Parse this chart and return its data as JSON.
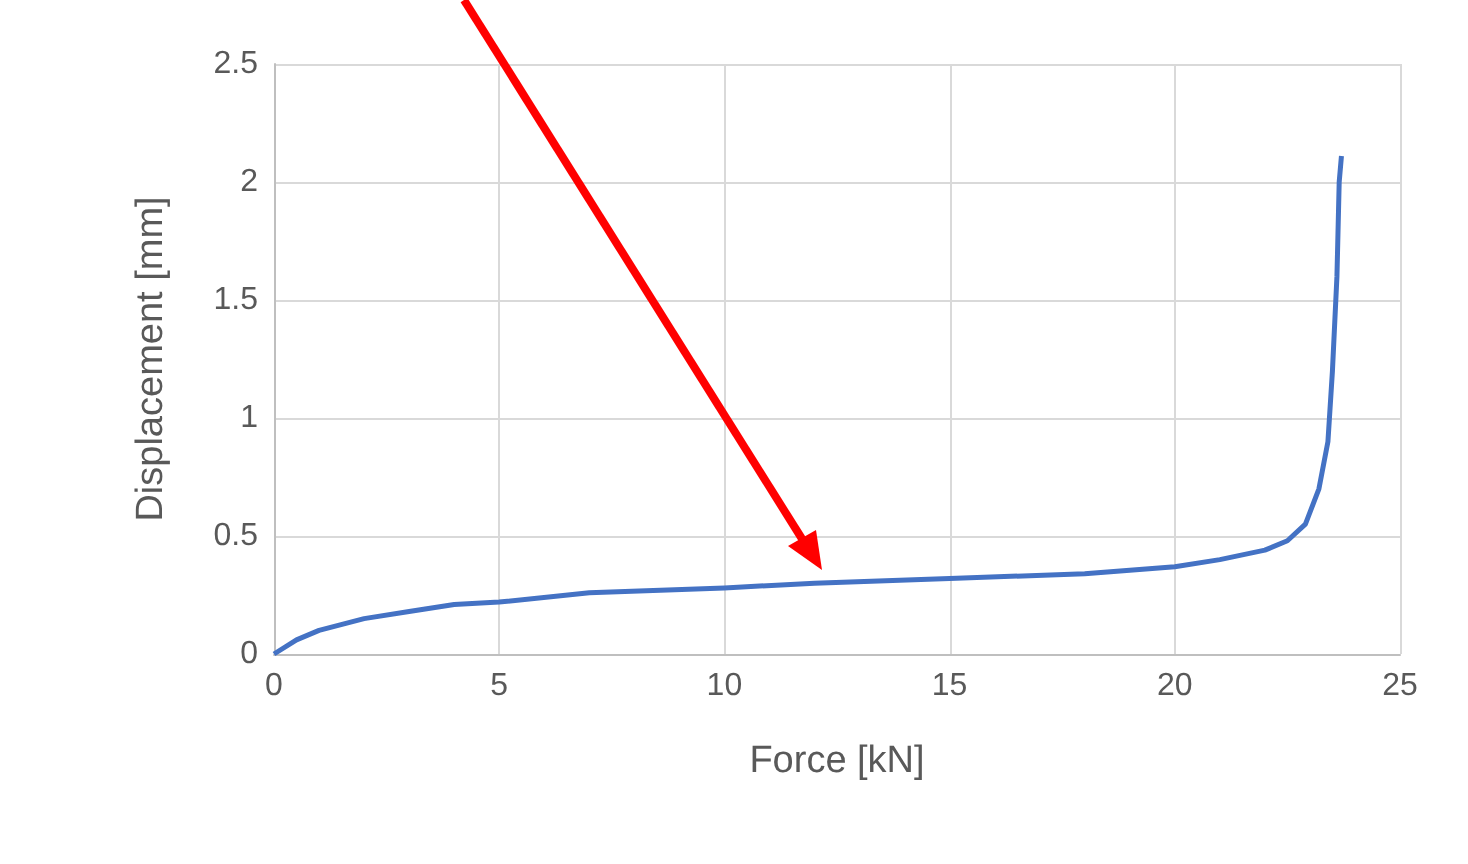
{
  "chart_data": {
    "type": "line",
    "xlabel": "Force [kN]",
    "ylabel": "Displacement [mm]",
    "x": [
      0,
      0.5,
      1,
      2,
      3,
      4,
      5,
      7,
      10,
      12,
      15,
      18,
      20,
      21,
      22,
      22.5,
      22.9,
      23.2,
      23.4,
      23.5,
      23.6,
      23.65,
      23.7
    ],
    "series": [
      {
        "color": "#4472c4",
        "values": [
          0,
          0.06,
          0.1,
          0.15,
          0.18,
          0.21,
          0.22,
          0.26,
          0.28,
          0.3,
          0.32,
          0.34,
          0.37,
          0.4,
          0.44,
          0.48,
          0.55,
          0.7,
          0.9,
          1.2,
          1.6,
          2.0,
          2.11
        ]
      }
    ],
    "xlim": [
      0,
      25
    ],
    "xticks": [
      0,
      5,
      10,
      15,
      20,
      25
    ],
    "ylim": [
      0,
      2.5
    ],
    "yticks": [
      0,
      0.5,
      1,
      1.5,
      2,
      2.5
    ],
    "grid": true,
    "marker": "none",
    "line_style": "solid"
  }
}
